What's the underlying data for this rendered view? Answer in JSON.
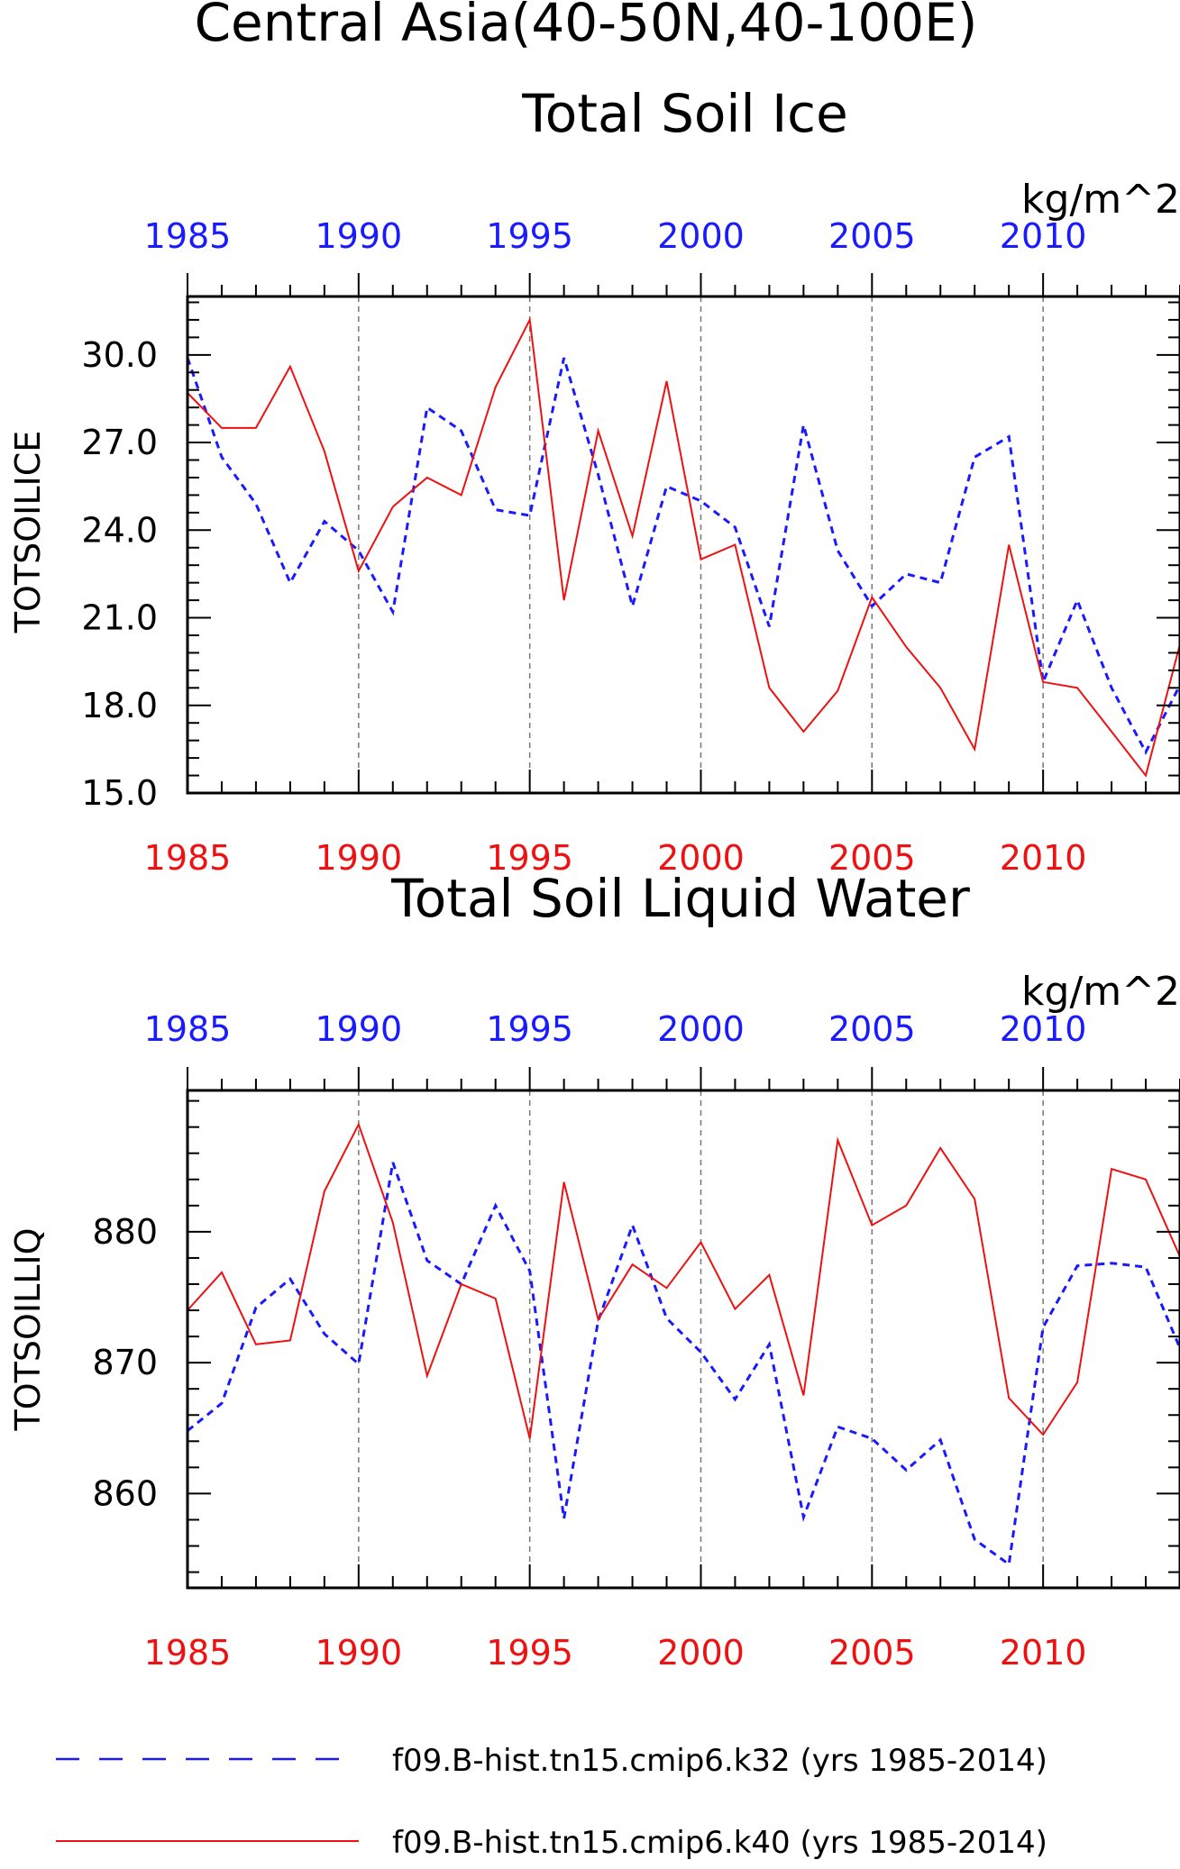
{
  "figure": {
    "title_line1": "Central Asia(40-50N,40-100E)",
    "colors": {
      "blue": "#1a1aff",
      "red": "#ee1111",
      "grid": "#777777",
      "axis": "#000000"
    }
  },
  "legend": [
    {
      "label": "f09.B-hist.tn15.cmip6.k32 (yrs 1985-2014)",
      "color": "#1a1aff",
      "style": "dashed"
    },
    {
      "label": "f09.B-hist.tn15.cmip6.k40 (yrs 1985-2014)",
      "color": "#ee1111",
      "style": "solid"
    }
  ],
  "chart_data": [
    {
      "type": "line",
      "title": "Total Soil Ice",
      "units": "kg/m^2",
      "ylabel": "TOTSOILICE",
      "xlim": [
        1985,
        2014
      ],
      "ylim": [
        15.0,
        32.0
      ],
      "yticks": [
        "15.0",
        "18.0",
        "21.0",
        "24.0",
        "27.0",
        "30.0"
      ],
      "xticks": [
        "1985",
        "1990",
        "1995",
        "2000",
        "2005",
        "2010"
      ],
      "grid": "vertical dashed at 1990, 1995, 2000, 2005, 2010",
      "x": [
        1985,
        1986,
        1987,
        1988,
        1989,
        1990,
        1991,
        1992,
        1993,
        1994,
        1995,
        1996,
        1997,
        1998,
        1999,
        2000,
        2001,
        2002,
        2003,
        2004,
        2005,
        2006,
        2007,
        2008,
        2009,
        2010,
        2011,
        2012,
        2013,
        2014
      ],
      "series": [
        {
          "color": "#1a1aff",
          "style": "dashed",
          "values": [
            29.9,
            26.5,
            24.9,
            22.2,
            24.3,
            23.3,
            21.2,
            28.2,
            27.4,
            24.7,
            24.5,
            29.9,
            25.9,
            21.4,
            25.5,
            25.0,
            24.1,
            20.7,
            27.6,
            23.3,
            21.4,
            22.5,
            22.2,
            26.5,
            27.2,
            18.8,
            21.6,
            18.6,
            16.4,
            18.7
          ]
        },
        {
          "color": "#ee1111",
          "style": "solid",
          "values": [
            28.7,
            27.5,
            27.5,
            29.6,
            26.7,
            22.6,
            24.8,
            25.8,
            25.2,
            28.9,
            31.2,
            21.6,
            27.4,
            23.8,
            29.1,
            23.0,
            23.5,
            18.6,
            17.1,
            18.5,
            21.7,
            20.0,
            18.6,
            16.5,
            23.5,
            18.8,
            18.6,
            17.1,
            15.6,
            20.1
          ]
        }
      ]
    },
    {
      "type": "line",
      "title": "Total Soil Liquid Water",
      "units": "kg/m^2",
      "ylabel": "TOTSOILLIQ",
      "xlim": [
        1985,
        2014
      ],
      "ylim": [
        852.8,
        890.8
      ],
      "yticks": [
        "860",
        "870",
        "880"
      ],
      "xticks": [
        "1985",
        "1990",
        "1995",
        "2000",
        "2005",
        "2010"
      ],
      "grid": "vertical dashed at 1990, 1995, 2000, 2005, 2010",
      "x": [
        1985,
        1986,
        1987,
        1988,
        1989,
        1990,
        1991,
        1992,
        1993,
        1994,
        1995,
        1996,
        1997,
        1998,
        1999,
        2000,
        2001,
        2002,
        2003,
        2004,
        2005,
        2006,
        2007,
        2008,
        2009,
        2010,
        2011,
        2012,
        2013,
        2014
      ],
      "series": [
        {
          "color": "#1a1aff",
          "style": "dashed",
          "values": [
            864.8,
            866.9,
            874.2,
            876.4,
            872.2,
            869.9,
            885.3,
            877.8,
            876.0,
            882.0,
            877.0,
            858.1,
            873.2,
            880.5,
            873.4,
            870.8,
            867.2,
            871.4,
            858.2,
            865.1,
            864.2,
            861.8,
            864.1,
            856.5,
            854.6,
            872.7,
            877.4,
            877.6,
            877.3,
            871.1
          ]
        },
        {
          "color": "#ee1111",
          "style": "solid",
          "values": [
            874.0,
            876.9,
            871.4,
            871.7,
            883.1,
            888.2,
            880.7,
            869.0,
            876.0,
            874.9,
            864.2,
            883.8,
            873.3,
            877.5,
            875.7,
            879.2,
            874.1,
            876.7,
            867.5,
            887.0,
            880.5,
            882.0,
            886.4,
            882.5,
            867.3,
            864.5,
            868.5,
            884.8,
            884.0,
            878.1
          ]
        }
      ]
    }
  ]
}
